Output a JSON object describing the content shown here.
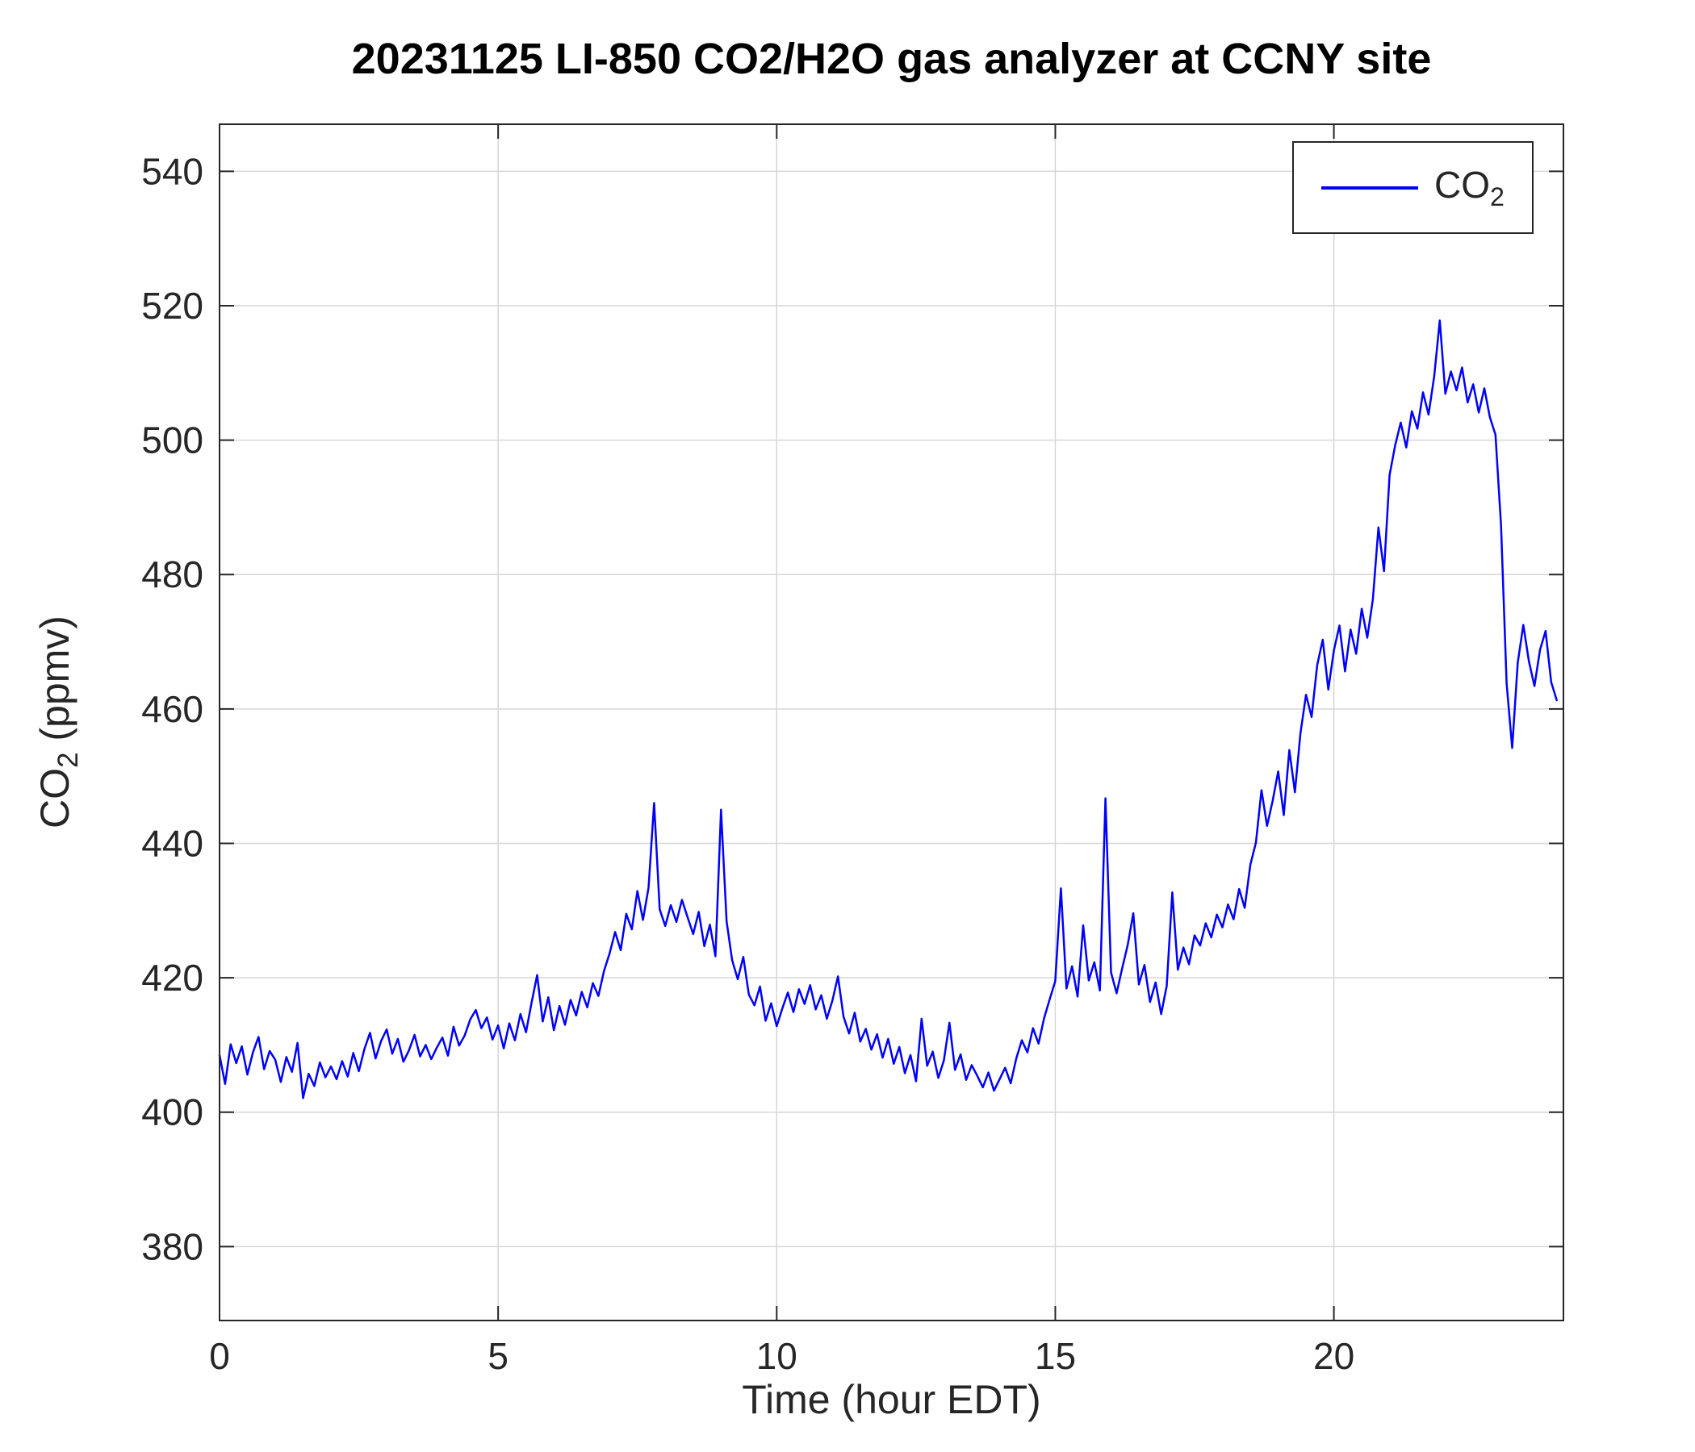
{
  "chart_data": {
    "type": "line",
    "title": "20231125 LI-850 CO2/H2O gas analyzer at CCNY site",
    "xlabel": "Time (hour EDT)",
    "ylabel": "CO_2 (ppmv)",
    "ylabel_parts": {
      "prefix": "CO",
      "sub": "2",
      "suffix": " (ppmv)"
    },
    "legend": {
      "position": "top-right",
      "entries": [
        {
          "prefix": "CO",
          "sub": "2",
          "color": "#0000ff"
        }
      ]
    },
    "xlim": [
      0,
      24.12
    ],
    "ylim": [
      369,
      547
    ],
    "xticks": [
      0,
      5,
      10,
      15,
      20
    ],
    "yticks": [
      380,
      400,
      420,
      440,
      460,
      480,
      500,
      520,
      540
    ],
    "grid": true,
    "grid_color": "#d6d6d6",
    "axis_color": "#262626",
    "line_color": "#0000ff",
    "series": [
      {
        "name": "CO2",
        "color": "#0000ff",
        "x_start": 0,
        "x_step": 0.1,
        "values": [
          408.5,
          404.2,
          410.1,
          407.3,
          409.8,
          405.6,
          408.9,
          411.2,
          406.4,
          409.1,
          407.8,
          404.5,
          408.2,
          406.0,
          410.3,
          402.1,
          405.7,
          403.9,
          407.4,
          405.2,
          406.8,
          404.9,
          407.6,
          405.3,
          408.8,
          406.1,
          409.4,
          411.8,
          408.0,
          410.6,
          412.3,
          408.7,
          410.9,
          407.5,
          409.2,
          411.5,
          408.3,
          410.0,
          407.9,
          409.6,
          411.1,
          408.4,
          412.7,
          409.9,
          411.4,
          413.8,
          415.2,
          412.5,
          414.1,
          410.8,
          412.9,
          409.5,
          413.2,
          410.7,
          414.6,
          411.9,
          416.3,
          420.4,
          413.5,
          417.1,
          412.2,
          415.8,
          413.0,
          416.7,
          414.4,
          417.9,
          415.6,
          419.2,
          417.3,
          421.0,
          423.6,
          426.8,
          424.1,
          429.5,
          427.2,
          432.9,
          428.6,
          433.4,
          446.0,
          430.2,
          427.7,
          430.8,
          428.3,
          431.6,
          429.0,
          426.5,
          429.8,
          424.7,
          427.9,
          423.2,
          445.0,
          428.4,
          422.6,
          419.8,
          423.1,
          417.5,
          415.9,
          418.7,
          413.6,
          416.2,
          412.8,
          415.4,
          417.8,
          414.9,
          418.3,
          416.1,
          418.9,
          415.3,
          417.4,
          413.9,
          416.6,
          420.2,
          414.2,
          411.7,
          414.8,
          410.5,
          412.4,
          409.3,
          411.6,
          408.1,
          410.9,
          407.2,
          409.7,
          405.8,
          408.5,
          404.6,
          413.9,
          406.9,
          409.0,
          405.1,
          407.7,
          413.3,
          406.3,
          408.6,
          404.8,
          407.0,
          405.4,
          403.7,
          405.9,
          403.2,
          404.9,
          406.6,
          404.3,
          408.0,
          410.7,
          408.9,
          412.5,
          410.2,
          414.0,
          416.8,
          419.5,
          433.3,
          418.4,
          421.7,
          417.2,
          427.8,
          419.6,
          422.3,
          418.1,
          446.7,
          420.8,
          417.7,
          421.4,
          424.9,
          429.6,
          419.0,
          421.9,
          416.4,
          419.3,
          414.6,
          418.8,
          432.7,
          421.2,
          424.5,
          422.0,
          426.3,
          424.8,
          428.1,
          426.0,
          429.4,
          427.5,
          430.9,
          428.7,
          433.2,
          430.4,
          436.8,
          440.1,
          447.9,
          442.6,
          446.3,
          450.7,
          444.2,
          453.9,
          447.6,
          456.4,
          462.1,
          458.8,
          466.5,
          470.3,
          462.9,
          468.7,
          472.4,
          465.6,
          471.8,
          468.2,
          474.9,
          470.6,
          476.3,
          487.0,
          480.5,
          494.8,
          499.2,
          502.6,
          498.9,
          504.3,
          501.7,
          507.1,
          503.8,
          509.5,
          517.8,
          506.9,
          510.2,
          507.4,
          510.8,
          505.6,
          508.3,
          504.1,
          507.7,
          503.4,
          500.8,
          487.3,
          463.8,
          454.2,
          466.9,
          472.5,
          467.1,
          463.4,
          468.8,
          471.6,
          464.0,
          461.3
        ]
      }
    ]
  }
}
